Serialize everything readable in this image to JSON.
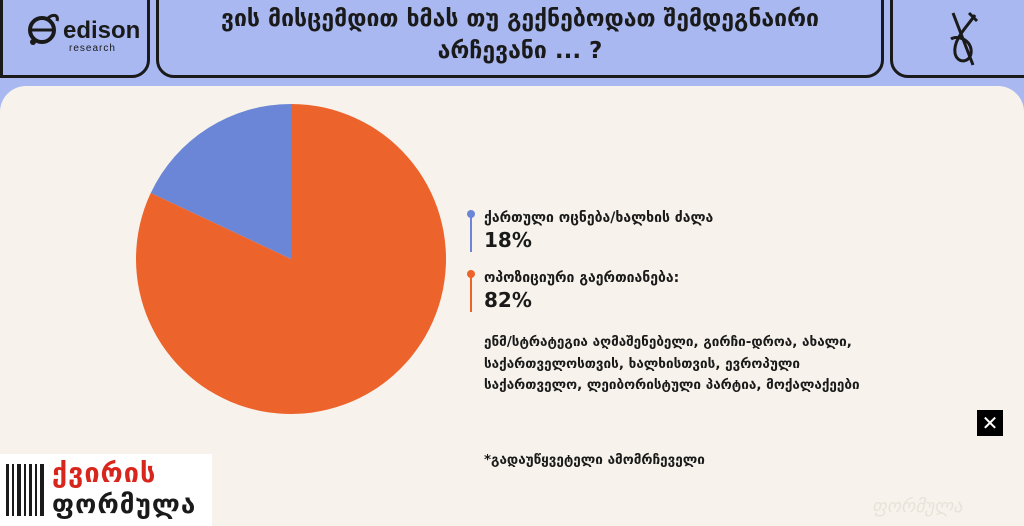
{
  "header": {
    "logo_word": "edison",
    "logo_sub": "research",
    "title": "ვის მისცემდით ხმას თუ გექნებოდათ შემდეგნაირი არჩევანი ... ?"
  },
  "chart_data": {
    "type": "pie",
    "title": "ვის მისცემდით ხმას თუ გექნებოდათ შემდეგნაირი არჩევანი ... ?",
    "slices": [
      {
        "label": "ქართული ოცნება/ხალხის ძალა",
        "value": 18,
        "display": "18%",
        "color": "#6b86d6"
      },
      {
        "label": "ოპოზიციური გაერთიანება:",
        "value": 82,
        "display": "82%",
        "color": "#ec642c"
      }
    ],
    "legend_position": "right"
  },
  "note": "ენმ/სტრატეგია აღმაშენებელი, გირჩი-დროა, ახალი, საქართველოსთვის, ხალხისთვის, ევროპული საქართველო, ლეიბორისტული პარტია, მოქალაქეები",
  "footnote": "*გადაუწყვეტელი ამომრჩეველი",
  "close_label": "✕",
  "brand": {
    "top": "ქვირის",
    "bottom": "ფორმულა"
  },
  "watermark": "ფორმულა"
}
